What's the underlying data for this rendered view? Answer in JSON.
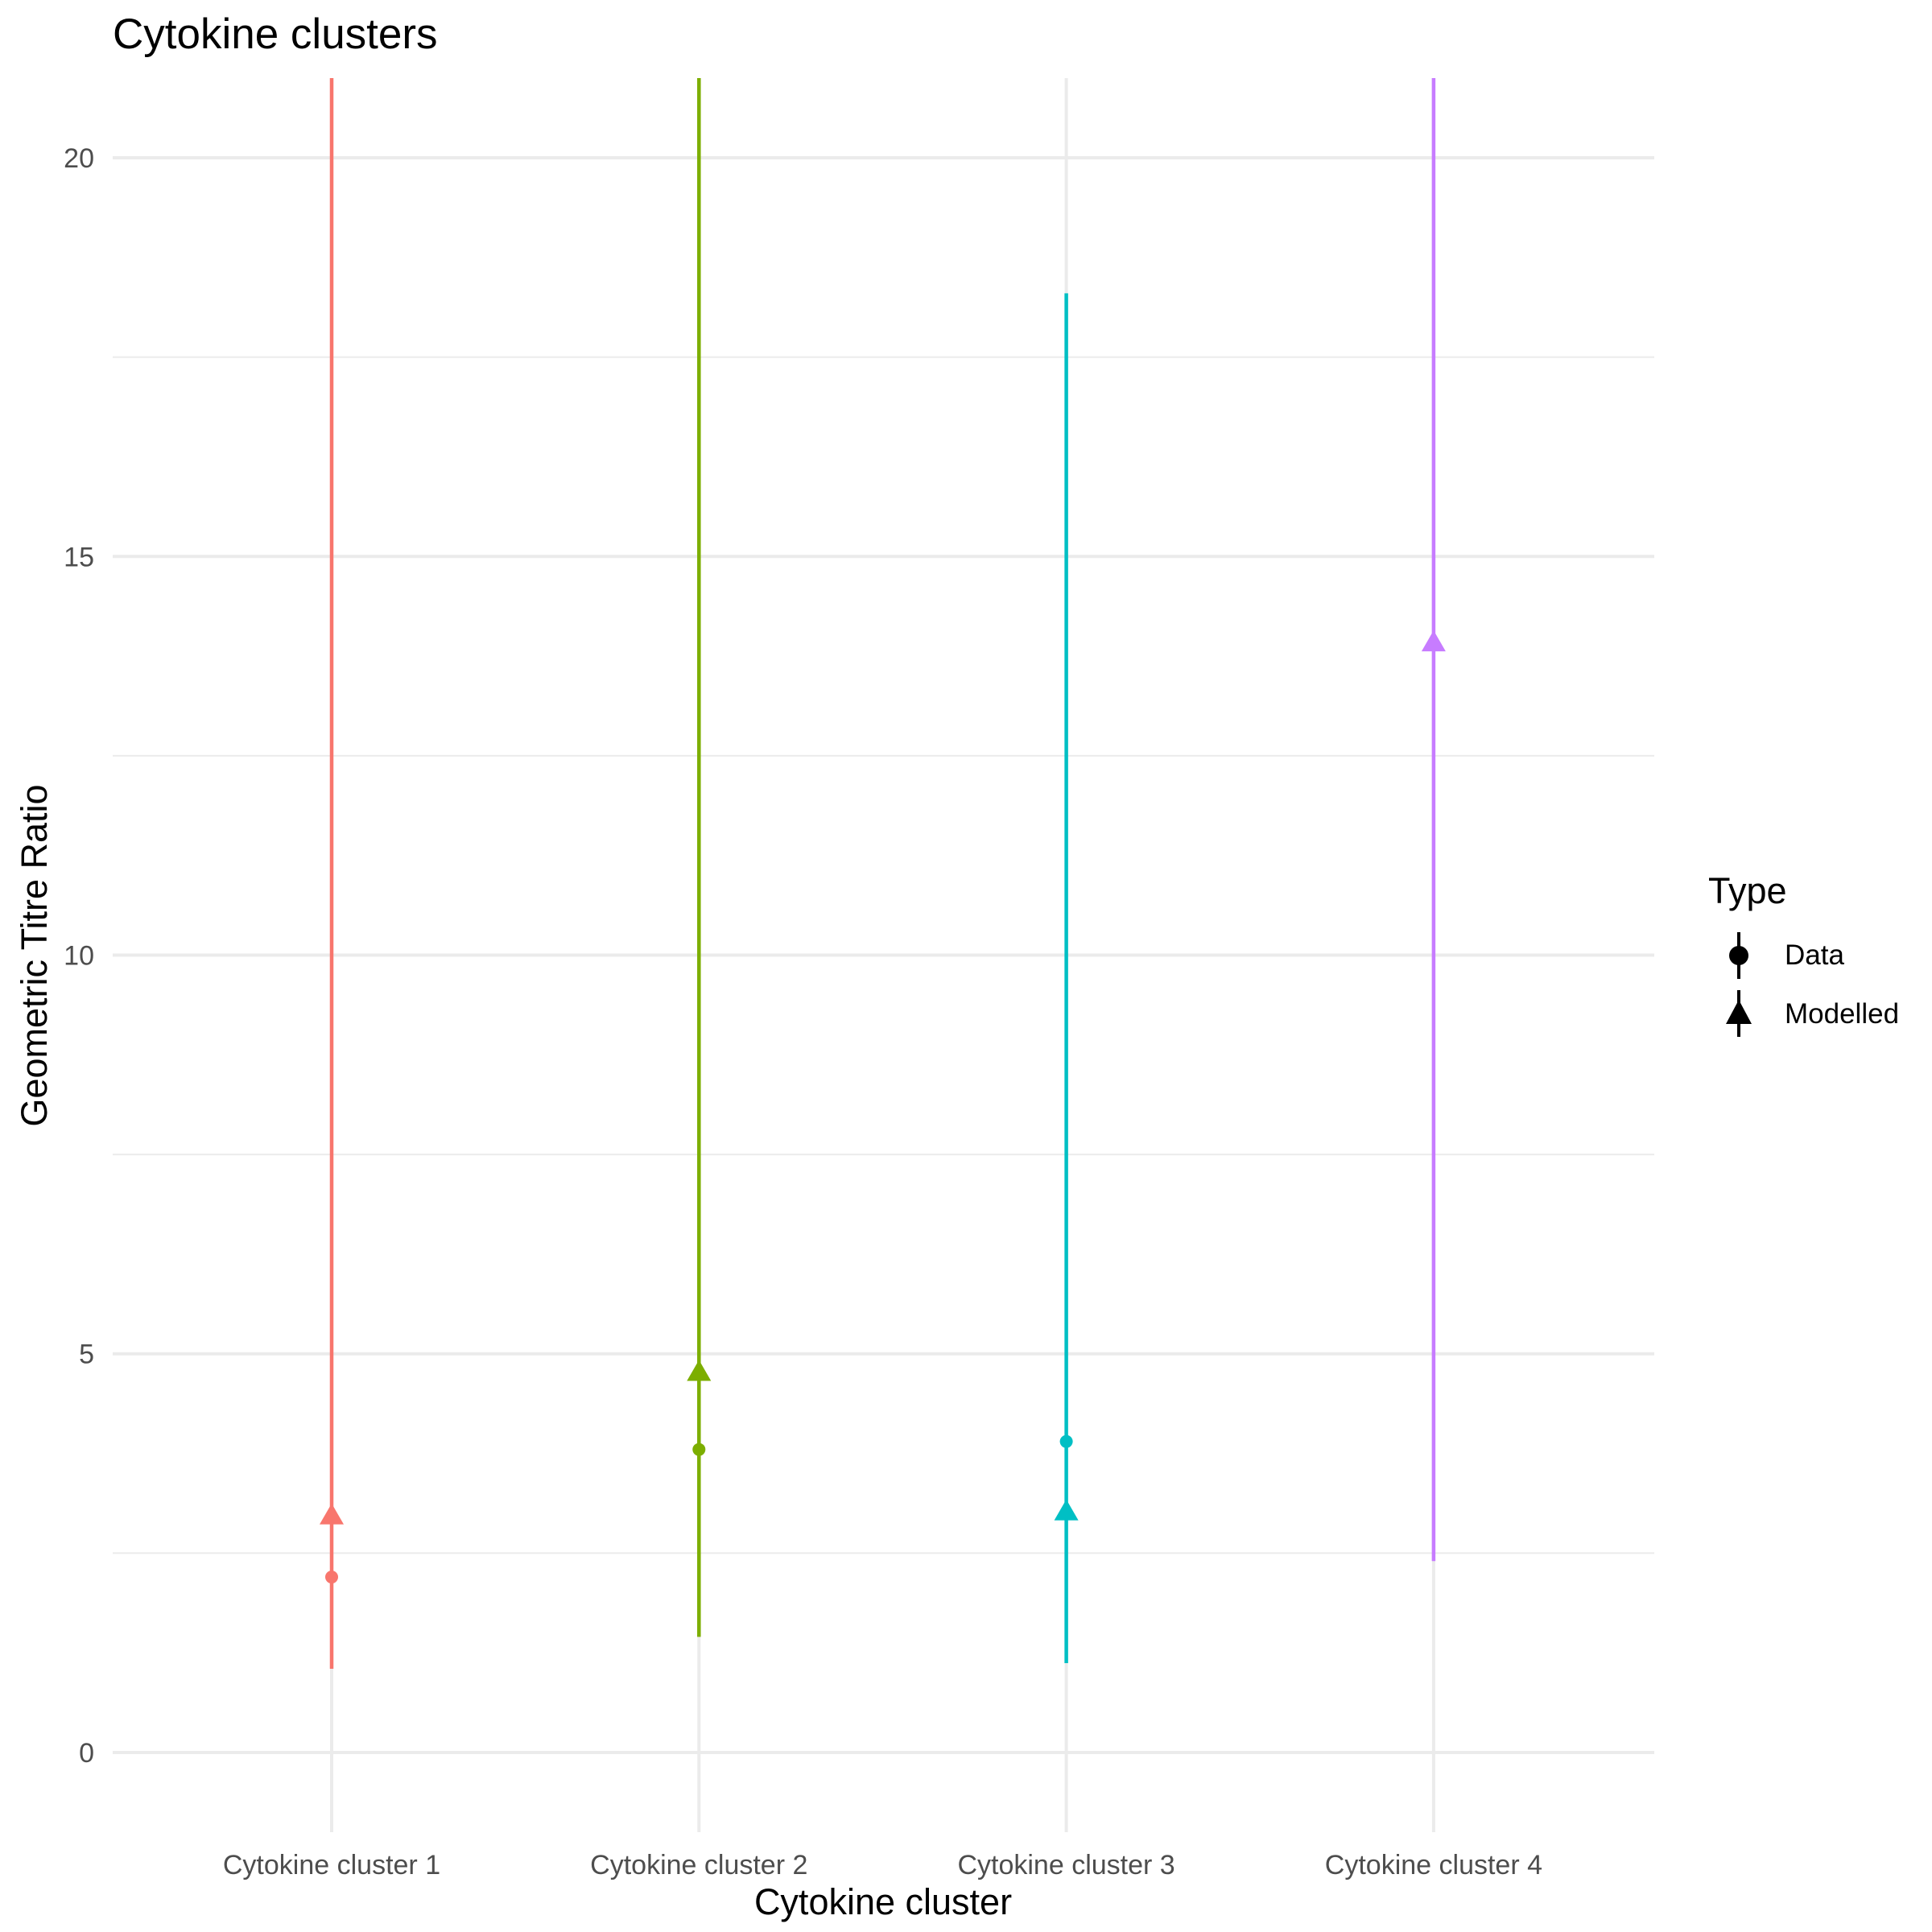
{
  "chart_data": {
    "type": "scatter",
    "title": "Cytokine clusters",
    "xlabel": "Cytokine cluster",
    "ylabel": "Geometric Titre Ratio",
    "categories": [
      "Cytokine cluster 1",
      "Cytokine cluster 2",
      "Cytokine cluster 3",
      "Cytokine cluster 4"
    ],
    "ylim": [
      -1.0,
      21.0
    ],
    "yticks": [
      0,
      5,
      10,
      15,
      20
    ],
    "grid": true,
    "legend": {
      "title": "Type",
      "position": "right",
      "entries": [
        {
          "label": "Data",
          "shape": "circle"
        },
        {
          "label": "Modelled",
          "shape": "triangle"
        }
      ]
    },
    "colors": {
      "Cytokine cluster 1": "#F8766D",
      "Cytokine cluster 2": "#7CAE00",
      "Cytokine cluster 3": "#00BFC4",
      "Cytokine cluster 4": "#C77CFF"
    },
    "series": [
      {
        "name": "Data",
        "shape": "circle",
        "points": [
          {
            "category": "Cytokine cluster 1",
            "value": 2.2,
            "lower": 1.05,
            "upper": 21.0
          },
          {
            "category": "Cytokine cluster 2",
            "value": 3.8,
            "lower": 1.45,
            "upper": 21.0
          },
          {
            "category": "Cytokine cluster 3",
            "value": 3.9,
            "lower": 1.12,
            "upper": 18.3
          }
        ]
      },
      {
        "name": "Modelled",
        "shape": "triangle",
        "points": [
          {
            "category": "Cytokine cluster 1",
            "value": 2.95,
            "lower": 1.05,
            "upper": 21.0
          },
          {
            "category": "Cytokine cluster 2",
            "value": 4.75,
            "lower": 1.45,
            "upper": 21.0
          },
          {
            "category": "Cytokine cluster 3",
            "value": 3.0,
            "lower": 1.12,
            "upper": 18.3
          },
          {
            "category": "Cytokine cluster 4",
            "value": 13.9,
            "lower": 2.4,
            "upper": 21.0
          }
        ]
      }
    ]
  }
}
